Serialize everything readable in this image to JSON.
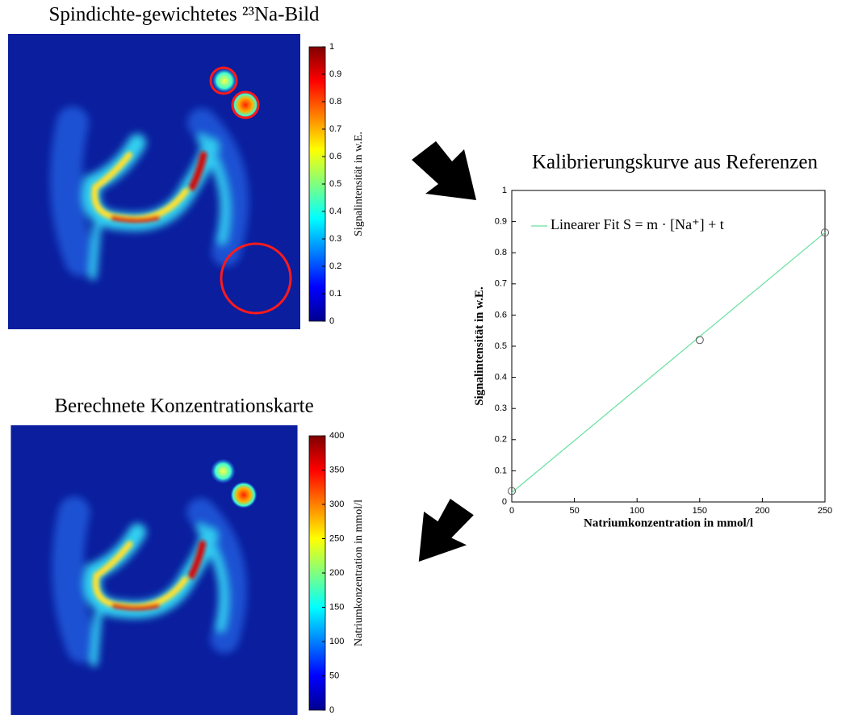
{
  "chart_data": [
    {
      "type": "image",
      "title": "Spindichte-gewichtetes ²³Na-Bild",
      "colorbar_label": "Signalintensität  in w.E.",
      "clim": [
        0,
        1
      ],
      "cticks": [
        0,
        0.1,
        0.2,
        0.3,
        0.4,
        0.5,
        0.6,
        0.7,
        0.8,
        0.9,
        1
      ]
    },
    {
      "type": "calibration",
      "title": "Kalibrierungskurve  aus Referenzen",
      "x_label": "Natriumkonzentration in mmol/l",
      "y_label": "Signalintensität in w.E.",
      "x": [
        0,
        150,
        250
      ],
      "values": [
        0.035,
        0.52,
        0.865
      ],
      "marker_color": "#555555",
      "fit": {
        "name": "Linearer  Fit S = m · [Na⁺] + t",
        "color": "#66e0a0",
        "x": [
          0,
          250
        ],
        "values": [
          0.03,
          0.865
        ]
      },
      "xlim": [
        0,
        250
      ],
      "ylim": [
        0,
        1
      ],
      "xticks": [
        0,
        50,
        100,
        150,
        200,
        250
      ],
      "yticks": [
        0,
        0.1,
        0.2,
        0.3,
        0.4,
        0.5,
        0.6,
        0.7,
        0.8,
        0.9,
        1
      ]
    },
    {
      "type": "image",
      "title": "Berechnete Konzentrationskarte",
      "colorbar_label": "Natriumkonzentration  in mmol/l",
      "clim": [
        0,
        400
      ],
      "cticks": [
        0,
        50,
        100,
        150,
        200,
        250,
        300,
        350,
        400
      ]
    }
  ]
}
